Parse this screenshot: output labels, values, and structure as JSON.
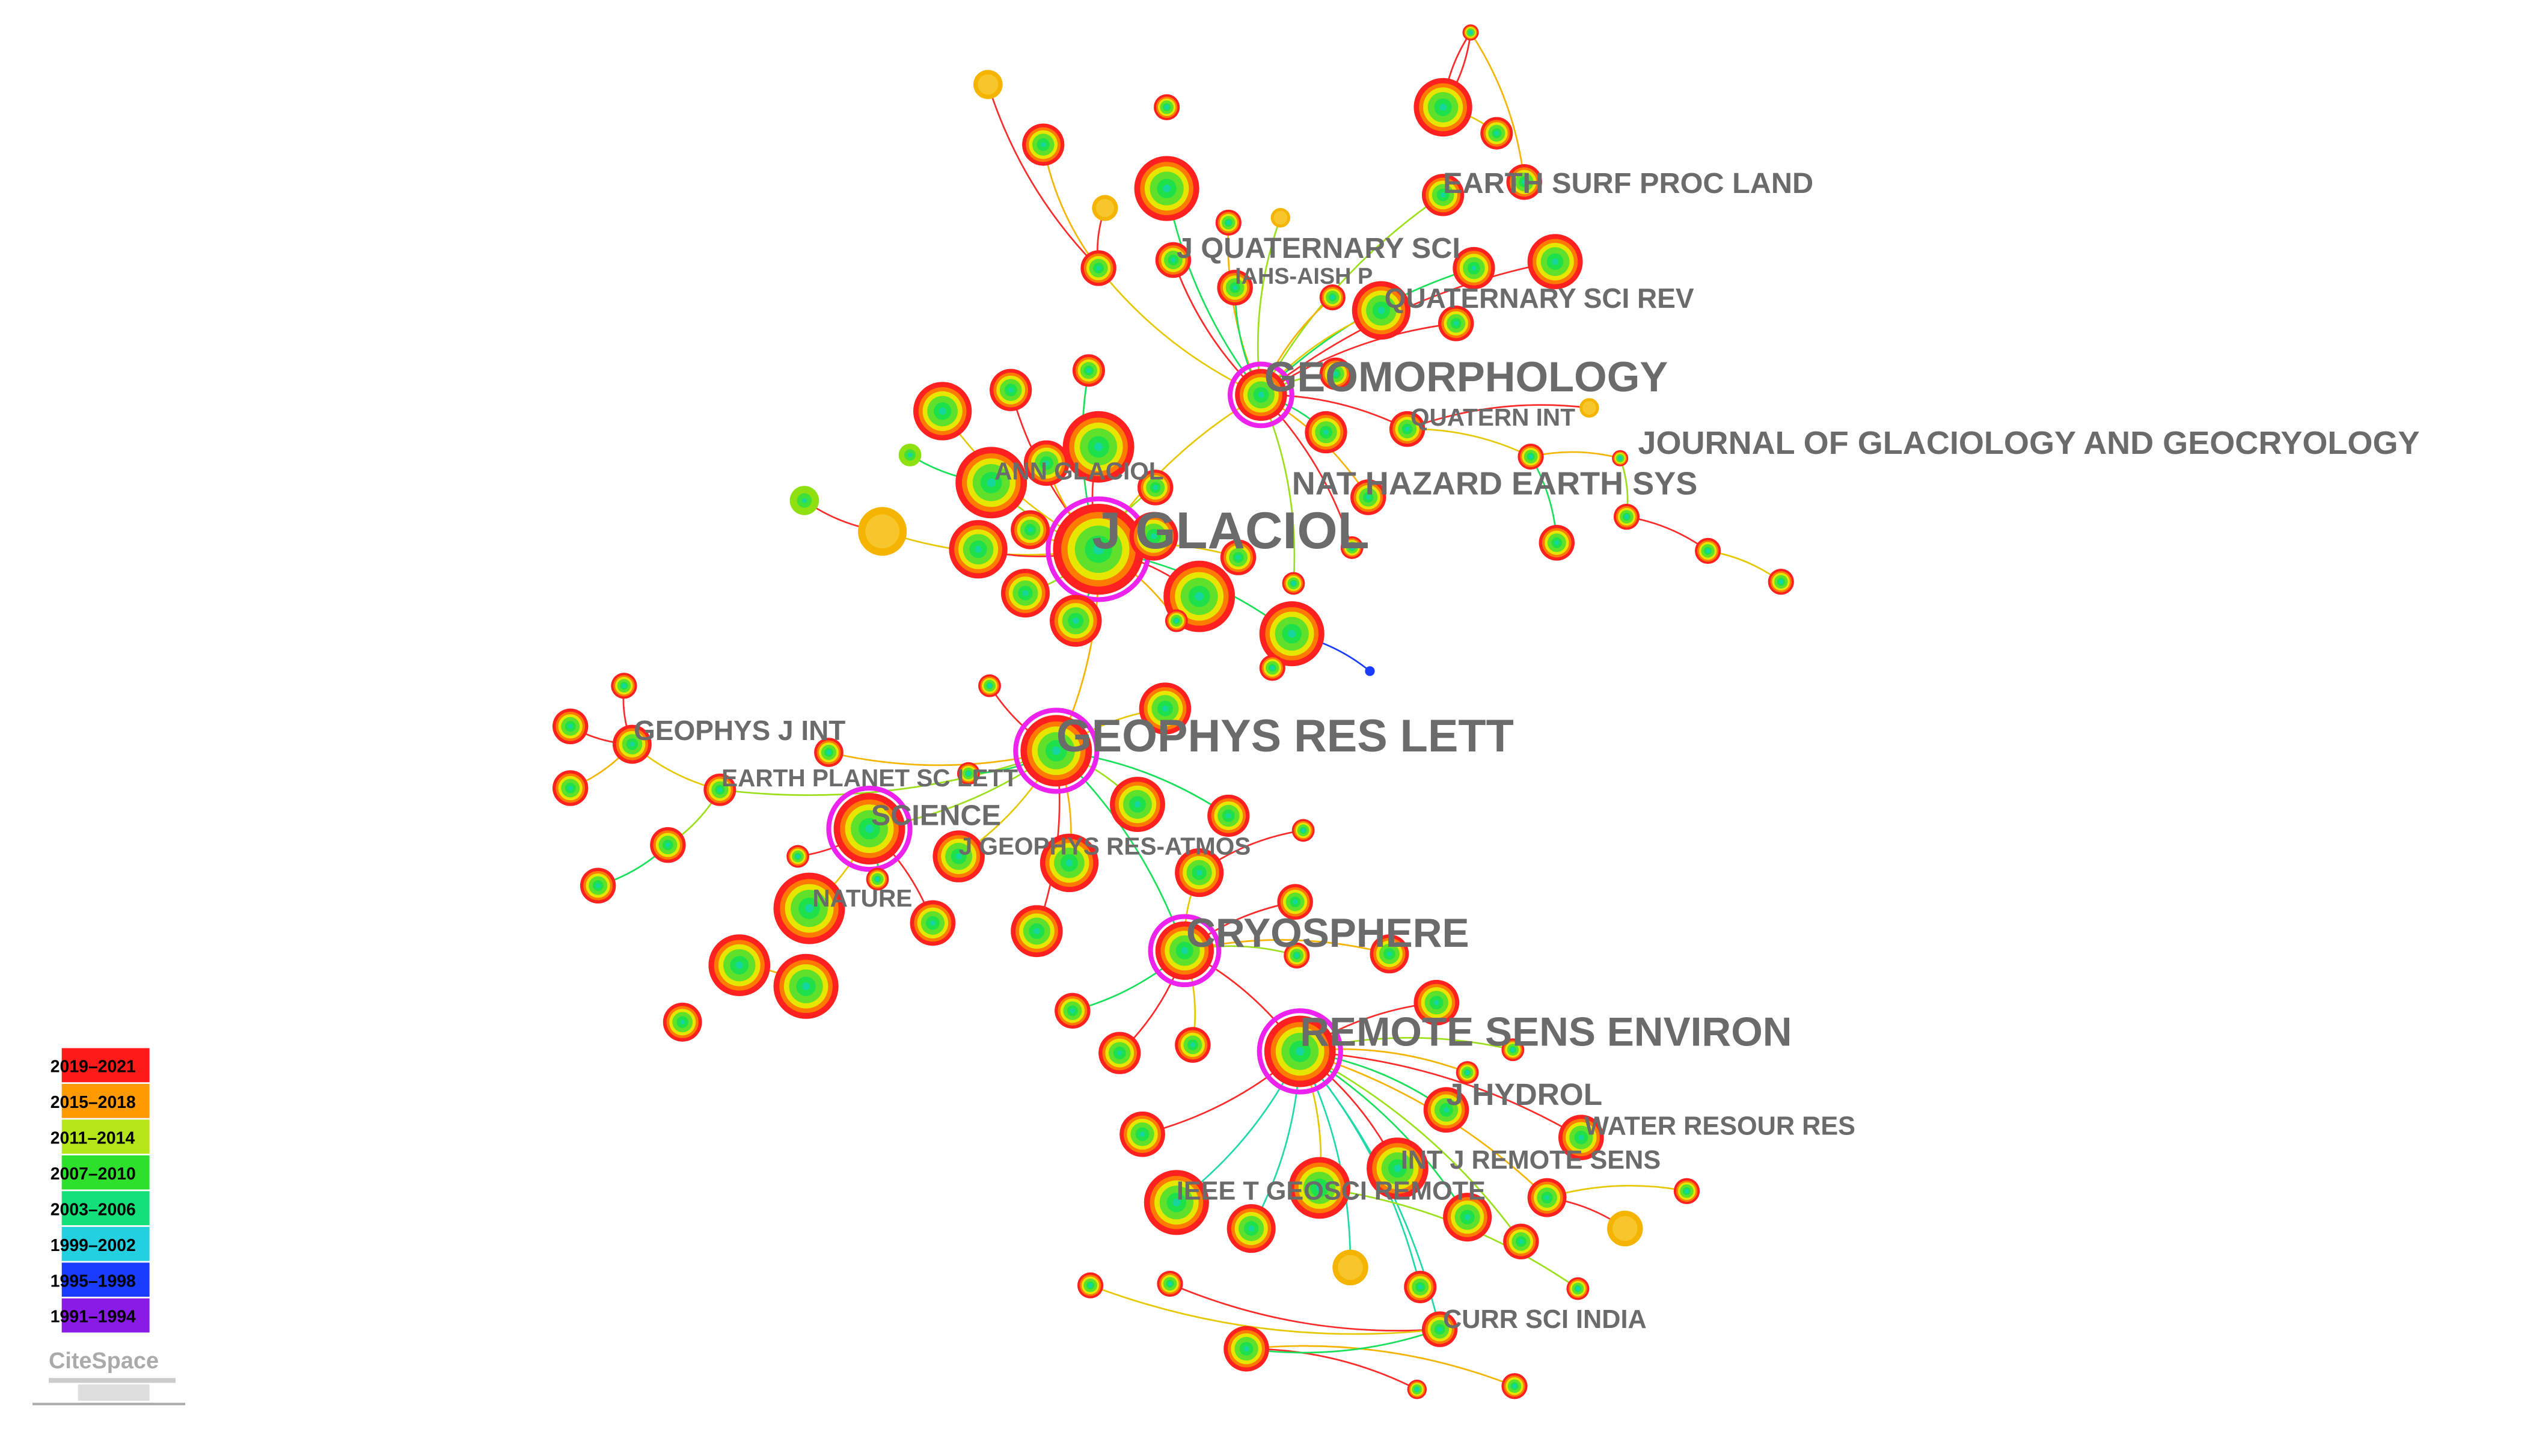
{
  "nodes": [
    {
      "label": "EARTH SURF PROC LAND"
    },
    {
      "label": "J QUATERNARY SCI"
    },
    {
      "label": "IAHS-AISH P"
    },
    {
      "label": "QUATERNARY SCI REV"
    },
    {
      "label": "GEOMORPHOLOGY"
    },
    {
      "label": "QUATERN INT"
    },
    {
      "label": "JOURNAL OF GLACIOLOGY AND GEOCRYOLOGY"
    },
    {
      "label": "ANN GLACIOL"
    },
    {
      "label": "NAT HAZARD EARTH SYS"
    },
    {
      "label": "J GLACIOL"
    },
    {
      "label": "GEOPHYS RES LETT"
    },
    {
      "label": "GEOPHYS J INT"
    },
    {
      "label": "EARTH PLANET SC LETT"
    },
    {
      "label": "SCIENCE"
    },
    {
      "label": "J GEOPHYS RES-ATMOS"
    },
    {
      "label": "NATURE"
    },
    {
      "label": "CRYOSPHERE"
    },
    {
      "label": "REMOTE SENS ENVIRON"
    },
    {
      "label": "J HYDROL"
    },
    {
      "label": "WATER RESOUR RES"
    },
    {
      "label": "INT J REMOTE SENS"
    },
    {
      "label": "IEEE T GEOSCI REMOTE"
    },
    {
      "label": "CURR SCI INDIA"
    }
  ],
  "legend": {
    "items": [
      "2019–2021",
      "2015–2018",
      "2011–2014",
      "2007–2010",
      "2003–2006",
      "1999–2002",
      "1995–1998",
      "1991–1994"
    ]
  },
  "logo": "CiteSpace"
}
